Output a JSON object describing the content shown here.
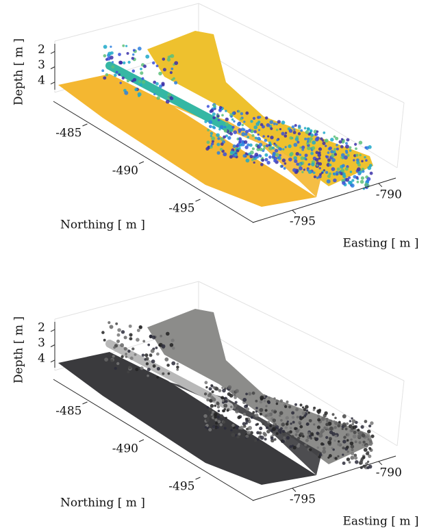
{
  "chart_data": [
    {
      "type": "scatter3d",
      "colormap": "parula",
      "xlabel": "Easting [ m ]",
      "ylabel": "Northing [ m ]",
      "zlabel": "Depth [ m ]",
      "xlim": [
        -797.3,
        -789
      ],
      "xticks": [
        -795,
        -790
      ],
      "ylim": [
        -482,
        -498
      ],
      "yticks": [
        -485,
        -490,
        -495
      ],
      "zlim": [
        1.5,
        4.5
      ],
      "zticks": [
        2,
        3,
        4
      ],
      "grid": true
    },
    {
      "type": "scatter3d",
      "colormap": "gray",
      "xlabel": "Easting [ m ]",
      "ylabel": "Northing [ m ]",
      "zlabel": "Depth [ m ]",
      "xlim": [
        -797.3,
        -789
      ],
      "xticks": [
        -795,
        -790
      ],
      "ylim": [
        -482,
        -498
      ],
      "yticks": [
        -485,
        -490,
        -495
      ],
      "zlim": [
        1.5,
        4.5
      ],
      "zticks": [
        2,
        3,
        4
      ],
      "grid": true
    }
  ]
}
